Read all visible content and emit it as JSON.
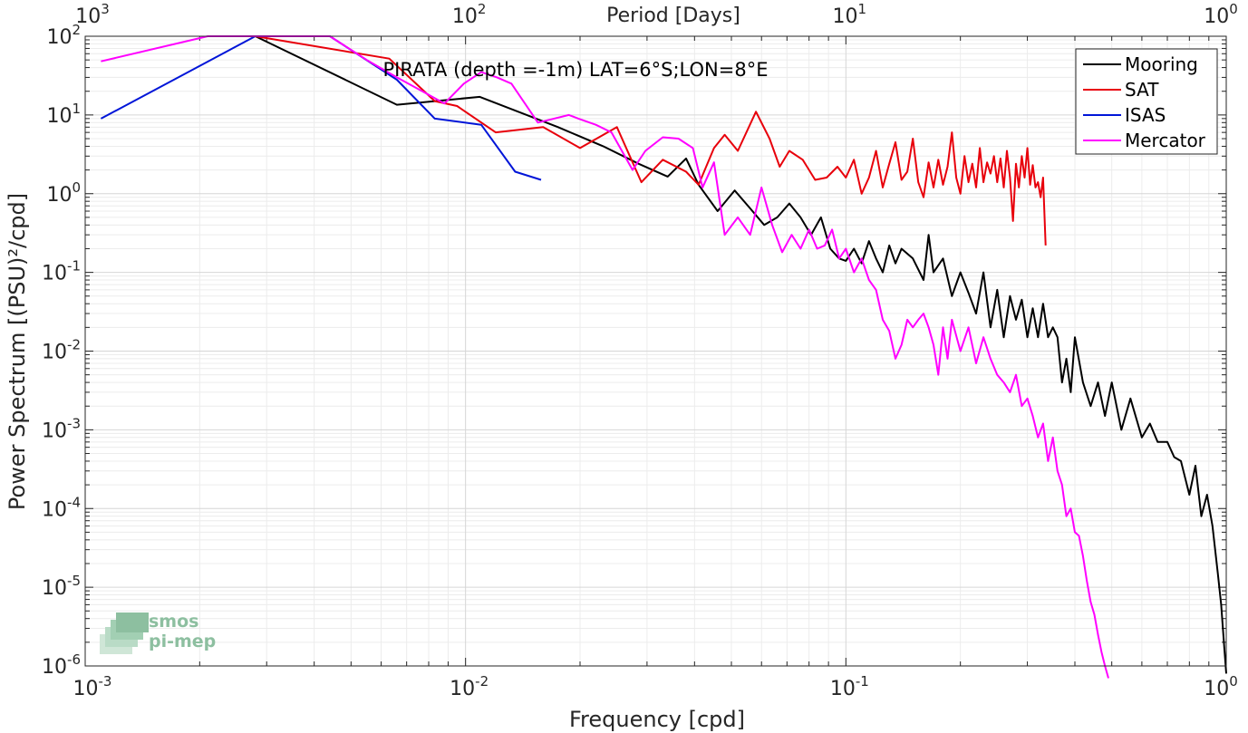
{
  "logo": {
    "line1": "smos",
    "line2": "pi-mep"
  },
  "chart_data": {
    "type": "line",
    "title": "PIRATA (depth =-1m) LAT=6°S;LON=8°E",
    "xlabel": "Frequency [cpd]",
    "ylabel": "Power Spectrum [(PSU)²/cpd]",
    "top_xlabel": "Period [Days]",
    "x_scale": "log",
    "y_scale": "log",
    "xlim": [
      0.001,
      1
    ],
    "ylim": [
      1e-06,
      100
    ],
    "x_ticks": [
      {
        "value": 0.001,
        "base": "10",
        "exp": "-3"
      },
      {
        "value": 0.01,
        "base": "10",
        "exp": "-2"
      },
      {
        "value": 0.1,
        "base": "10",
        "exp": "-1"
      },
      {
        "value": 1,
        "base": "10",
        "exp": "0"
      }
    ],
    "top_x_ticks": [
      {
        "value": 0.001,
        "base": "10",
        "exp": "3"
      },
      {
        "value": 0.01,
        "base": "10",
        "exp": "2"
      },
      {
        "value": 0.1,
        "base": "10",
        "exp": "1"
      },
      {
        "value": 1,
        "base": "10",
        "exp": "0"
      }
    ],
    "y_ticks": [
      {
        "value": 100,
        "base": "10",
        "exp": "2"
      },
      {
        "value": 10,
        "base": "10",
        "exp": "1"
      },
      {
        "value": 1,
        "base": "10",
        "exp": "0"
      },
      {
        "value": 0.1,
        "base": "10",
        "exp": "-1"
      },
      {
        "value": 0.01,
        "base": "10",
        "exp": "-2"
      },
      {
        "value": 0.001,
        "base": "10",
        "exp": "-3"
      },
      {
        "value": 0.0001,
        "base": "10",
        "exp": "-4"
      },
      {
        "value": 1e-05,
        "base": "10",
        "exp": "-5"
      },
      {
        "value": 1e-06,
        "base": "10",
        "exp": "-6"
      }
    ],
    "grid": true,
    "legend_position": "top-right",
    "series": [
      {
        "name": "Mooring",
        "color": "#000000",
        "points": [
          [
            0.0028,
            100
          ],
          [
            0.0066,
            13.5
          ],
          [
            0.0109,
            17
          ],
          [
            0.0175,
            7
          ],
          [
            0.023,
            4
          ],
          [
            0.0285,
            2.4
          ],
          [
            0.034,
            1.65
          ],
          [
            0.038,
            2.8
          ],
          [
            0.041,
            1.3
          ],
          [
            0.046,
            0.6
          ],
          [
            0.051,
            1.1
          ],
          [
            0.056,
            0.65
          ],
          [
            0.061,
            0.4
          ],
          [
            0.066,
            0.5
          ],
          [
            0.071,
            0.75
          ],
          [
            0.076,
            0.5
          ],
          [
            0.081,
            0.3
          ],
          [
            0.086,
            0.5
          ],
          [
            0.091,
            0.2
          ],
          [
            0.096,
            0.15
          ],
          [
            0.1,
            0.14
          ],
          [
            0.105,
            0.2
          ],
          [
            0.11,
            0.13
          ],
          [
            0.115,
            0.25
          ],
          [
            0.12,
            0.15
          ],
          [
            0.125,
            0.1
          ],
          [
            0.13,
            0.22
          ],
          [
            0.135,
            0.13
          ],
          [
            0.14,
            0.2
          ],
          [
            0.15,
            0.15
          ],
          [
            0.16,
            0.08
          ],
          [
            0.165,
            0.3
          ],
          [
            0.17,
            0.1
          ],
          [
            0.18,
            0.15
          ],
          [
            0.19,
            0.05
          ],
          [
            0.2,
            0.1
          ],
          [
            0.21,
            0.055
          ],
          [
            0.22,
            0.03
          ],
          [
            0.23,
            0.1
          ],
          [
            0.24,
            0.02
          ],
          [
            0.25,
            0.06
          ],
          [
            0.26,
            0.015
          ],
          [
            0.27,
            0.05
          ],
          [
            0.28,
            0.025
          ],
          [
            0.29,
            0.045
          ],
          [
            0.3,
            0.015
          ],
          [
            0.31,
            0.035
          ],
          [
            0.32,
            0.015
          ],
          [
            0.33,
            0.04
          ],
          [
            0.34,
            0.015
          ],
          [
            0.35,
            0.02
          ],
          [
            0.36,
            0.015
          ],
          [
            0.37,
            0.004
          ],
          [
            0.38,
            0.008
          ],
          [
            0.39,
            0.003
          ],
          [
            0.4,
            0.015
          ],
          [
            0.42,
            0.004
          ],
          [
            0.44,
            0.002
          ],
          [
            0.46,
            0.004
          ],
          [
            0.48,
            0.0015
          ],
          [
            0.5,
            0.004
          ],
          [
            0.53,
            0.001
          ],
          [
            0.56,
            0.0025
          ],
          [
            0.6,
            0.0008
          ],
          [
            0.63,
            0.0012
          ],
          [
            0.66,
            0.0007
          ],
          [
            0.7,
            0.0007
          ],
          [
            0.73,
            0.00045
          ],
          [
            0.76,
            0.0004
          ],
          [
            0.8,
            0.00015
          ],
          [
            0.83,
            0.00035
          ],
          [
            0.86,
            8e-05
          ],
          [
            0.89,
            0.00015
          ],
          [
            0.92,
            6e-05
          ],
          [
            0.95,
            1.5e-05
          ],
          [
            0.97,
            6e-06
          ],
          [
            0.99,
            1.5e-06
          ],
          [
            1.0,
            8e-07
          ]
        ]
      },
      {
        "name": "SAT",
        "color": "#e8000b",
        "points": [
          [
            0.0028,
            100
          ],
          [
            0.0063,
            52
          ],
          [
            0.0083,
            15
          ],
          [
            0.0095,
            13
          ],
          [
            0.012,
            6
          ],
          [
            0.016,
            7
          ],
          [
            0.02,
            3.8
          ],
          [
            0.025,
            7
          ],
          [
            0.029,
            1.4
          ],
          [
            0.033,
            2.7
          ],
          [
            0.038,
            1.9
          ],
          [
            0.041,
            1.3
          ],
          [
            0.045,
            3.8
          ],
          [
            0.048,
            5.6
          ],
          [
            0.052,
            3.5
          ],
          [
            0.058,
            11
          ],
          [
            0.063,
            5
          ],
          [
            0.067,
            2.2
          ],
          [
            0.071,
            3.5
          ],
          [
            0.077,
            2.7
          ],
          [
            0.083,
            1.5
          ],
          [
            0.089,
            1.6
          ],
          [
            0.095,
            2.2
          ],
          [
            0.1,
            1.6
          ],
          [
            0.105,
            2.7
          ],
          [
            0.11,
            1
          ],
          [
            0.115,
            1.6
          ],
          [
            0.12,
            3.5
          ],
          [
            0.125,
            1.2
          ],
          [
            0.13,
            2.4
          ],
          [
            0.135,
            4.5
          ],
          [
            0.14,
            1.5
          ],
          [
            0.145,
            1.9
          ],
          [
            0.15,
            5
          ],
          [
            0.155,
            1.4
          ],
          [
            0.16,
            0.9
          ],
          [
            0.165,
            2.5
          ],
          [
            0.17,
            1.2
          ],
          [
            0.175,
            2.7
          ],
          [
            0.18,
            1.3
          ],
          [
            0.185,
            2.2
          ],
          [
            0.19,
            6
          ],
          [
            0.195,
            1.6
          ],
          [
            0.2,
            1
          ],
          [
            0.205,
            3
          ],
          [
            0.21,
            1.4
          ],
          [
            0.215,
            2.4
          ],
          [
            0.22,
            1.2
          ],
          [
            0.225,
            3.8
          ],
          [
            0.23,
            1.4
          ],
          [
            0.235,
            2.5
          ],
          [
            0.24,
            1.8
          ],
          [
            0.245,
            3
          ],
          [
            0.25,
            1.4
          ],
          [
            0.255,
            2.8
          ],
          [
            0.26,
            1.2
          ],
          [
            0.265,
            3.5
          ],
          [
            0.27,
            1.6
          ],
          [
            0.275,
            0.45
          ],
          [
            0.28,
            2.4
          ],
          [
            0.285,
            1.2
          ],
          [
            0.29,
            3
          ],
          [
            0.295,
            1.6
          ],
          [
            0.3,
            3.8
          ],
          [
            0.305,
            1.3
          ],
          [
            0.31,
            2.3
          ],
          [
            0.315,
            1.2
          ],
          [
            0.32,
            1.4
          ],
          [
            0.325,
            0.9
          ],
          [
            0.33,
            1.6
          ],
          [
            0.335,
            0.22
          ]
        ]
      },
      {
        "name": "ISAS",
        "color": "#0015d8",
        "points": [
          [
            0.0011,
            9
          ],
          [
            0.0028,
            100
          ],
          [
            0.0044,
            100
          ],
          [
            0.0066,
            28
          ],
          [
            0.0083,
            9
          ],
          [
            0.011,
            7.5
          ],
          [
            0.0135,
            1.9
          ],
          [
            0.0158,
            1.5
          ]
        ]
      },
      {
        "name": "Mercator",
        "color": "#ff00ff",
        "points": [
          [
            0.0011,
            48
          ],
          [
            0.0021,
            100
          ],
          [
            0.0044,
            100
          ],
          [
            0.0055,
            50
          ],
          [
            0.0066,
            30
          ],
          [
            0.0077,
            20
          ],
          [
            0.0088,
            14
          ],
          [
            0.0099,
            25
          ],
          [
            0.011,
            35
          ],
          [
            0.0121,
            30
          ],
          [
            0.0132,
            25
          ],
          [
            0.0155,
            8
          ],
          [
            0.0187,
            10
          ],
          [
            0.0198,
            9
          ],
          [
            0.022,
            7.5
          ],
          [
            0.0242,
            6
          ],
          [
            0.0275,
            2
          ],
          [
            0.0297,
            3.5
          ],
          [
            0.033,
            5.2
          ],
          [
            0.0363,
            5
          ],
          [
            0.0396,
            3.8
          ],
          [
            0.042,
            1.2
          ],
          [
            0.045,
            2.5
          ],
          [
            0.048,
            0.3
          ],
          [
            0.052,
            0.5
          ],
          [
            0.056,
            0.3
          ],
          [
            0.06,
            1.2
          ],
          [
            0.064,
            0.4
          ],
          [
            0.068,
            0.18
          ],
          [
            0.072,
            0.3
          ],
          [
            0.076,
            0.2
          ],
          [
            0.08,
            0.35
          ],
          [
            0.084,
            0.2
          ],
          [
            0.088,
            0.22
          ],
          [
            0.092,
            0.35
          ],
          [
            0.096,
            0.15
          ],
          [
            0.1,
            0.2
          ],
          [
            0.105,
            0.1
          ],
          [
            0.11,
            0.15
          ],
          [
            0.115,
            0.08
          ],
          [
            0.12,
            0.06
          ],
          [
            0.125,
            0.025
          ],
          [
            0.13,
            0.018
          ],
          [
            0.135,
            0.008
          ],
          [
            0.14,
            0.012
          ],
          [
            0.145,
            0.025
          ],
          [
            0.15,
            0.02
          ],
          [
            0.155,
            0.025
          ],
          [
            0.16,
            0.03
          ],
          [
            0.165,
            0.02
          ],
          [
            0.17,
            0.012
          ],
          [
            0.175,
            0.005
          ],
          [
            0.18,
            0.02
          ],
          [
            0.185,
            0.008
          ],
          [
            0.19,
            0.025
          ],
          [
            0.2,
            0.01
          ],
          [
            0.21,
            0.02
          ],
          [
            0.22,
            0.007
          ],
          [
            0.23,
            0.015
          ],
          [
            0.24,
            0.008
          ],
          [
            0.25,
            0.005
          ],
          [
            0.26,
            0.004
          ],
          [
            0.27,
            0.003
          ],
          [
            0.28,
            0.005
          ],
          [
            0.29,
            0.002
          ],
          [
            0.3,
            0.0025
          ],
          [
            0.31,
            0.0015
          ],
          [
            0.32,
            0.0008
          ],
          [
            0.33,
            0.0012
          ],
          [
            0.34,
            0.0004
          ],
          [
            0.35,
            0.0008
          ],
          [
            0.36,
            0.0003
          ],
          [
            0.37,
            0.0002
          ],
          [
            0.38,
            8e-05
          ],
          [
            0.39,
            0.0001
          ],
          [
            0.4,
            5e-05
          ],
          [
            0.41,
            4.5e-05
          ],
          [
            0.42,
            2.5e-05
          ],
          [
            0.43,
            1.2e-05
          ],
          [
            0.44,
            6.5e-06
          ],
          [
            0.45,
            4.5e-06
          ],
          [
            0.46,
            2.5e-06
          ],
          [
            0.47,
            1.5e-06
          ],
          [
            0.48,
            1e-06
          ],
          [
            0.49,
            7e-07
          ]
        ]
      }
    ]
  }
}
